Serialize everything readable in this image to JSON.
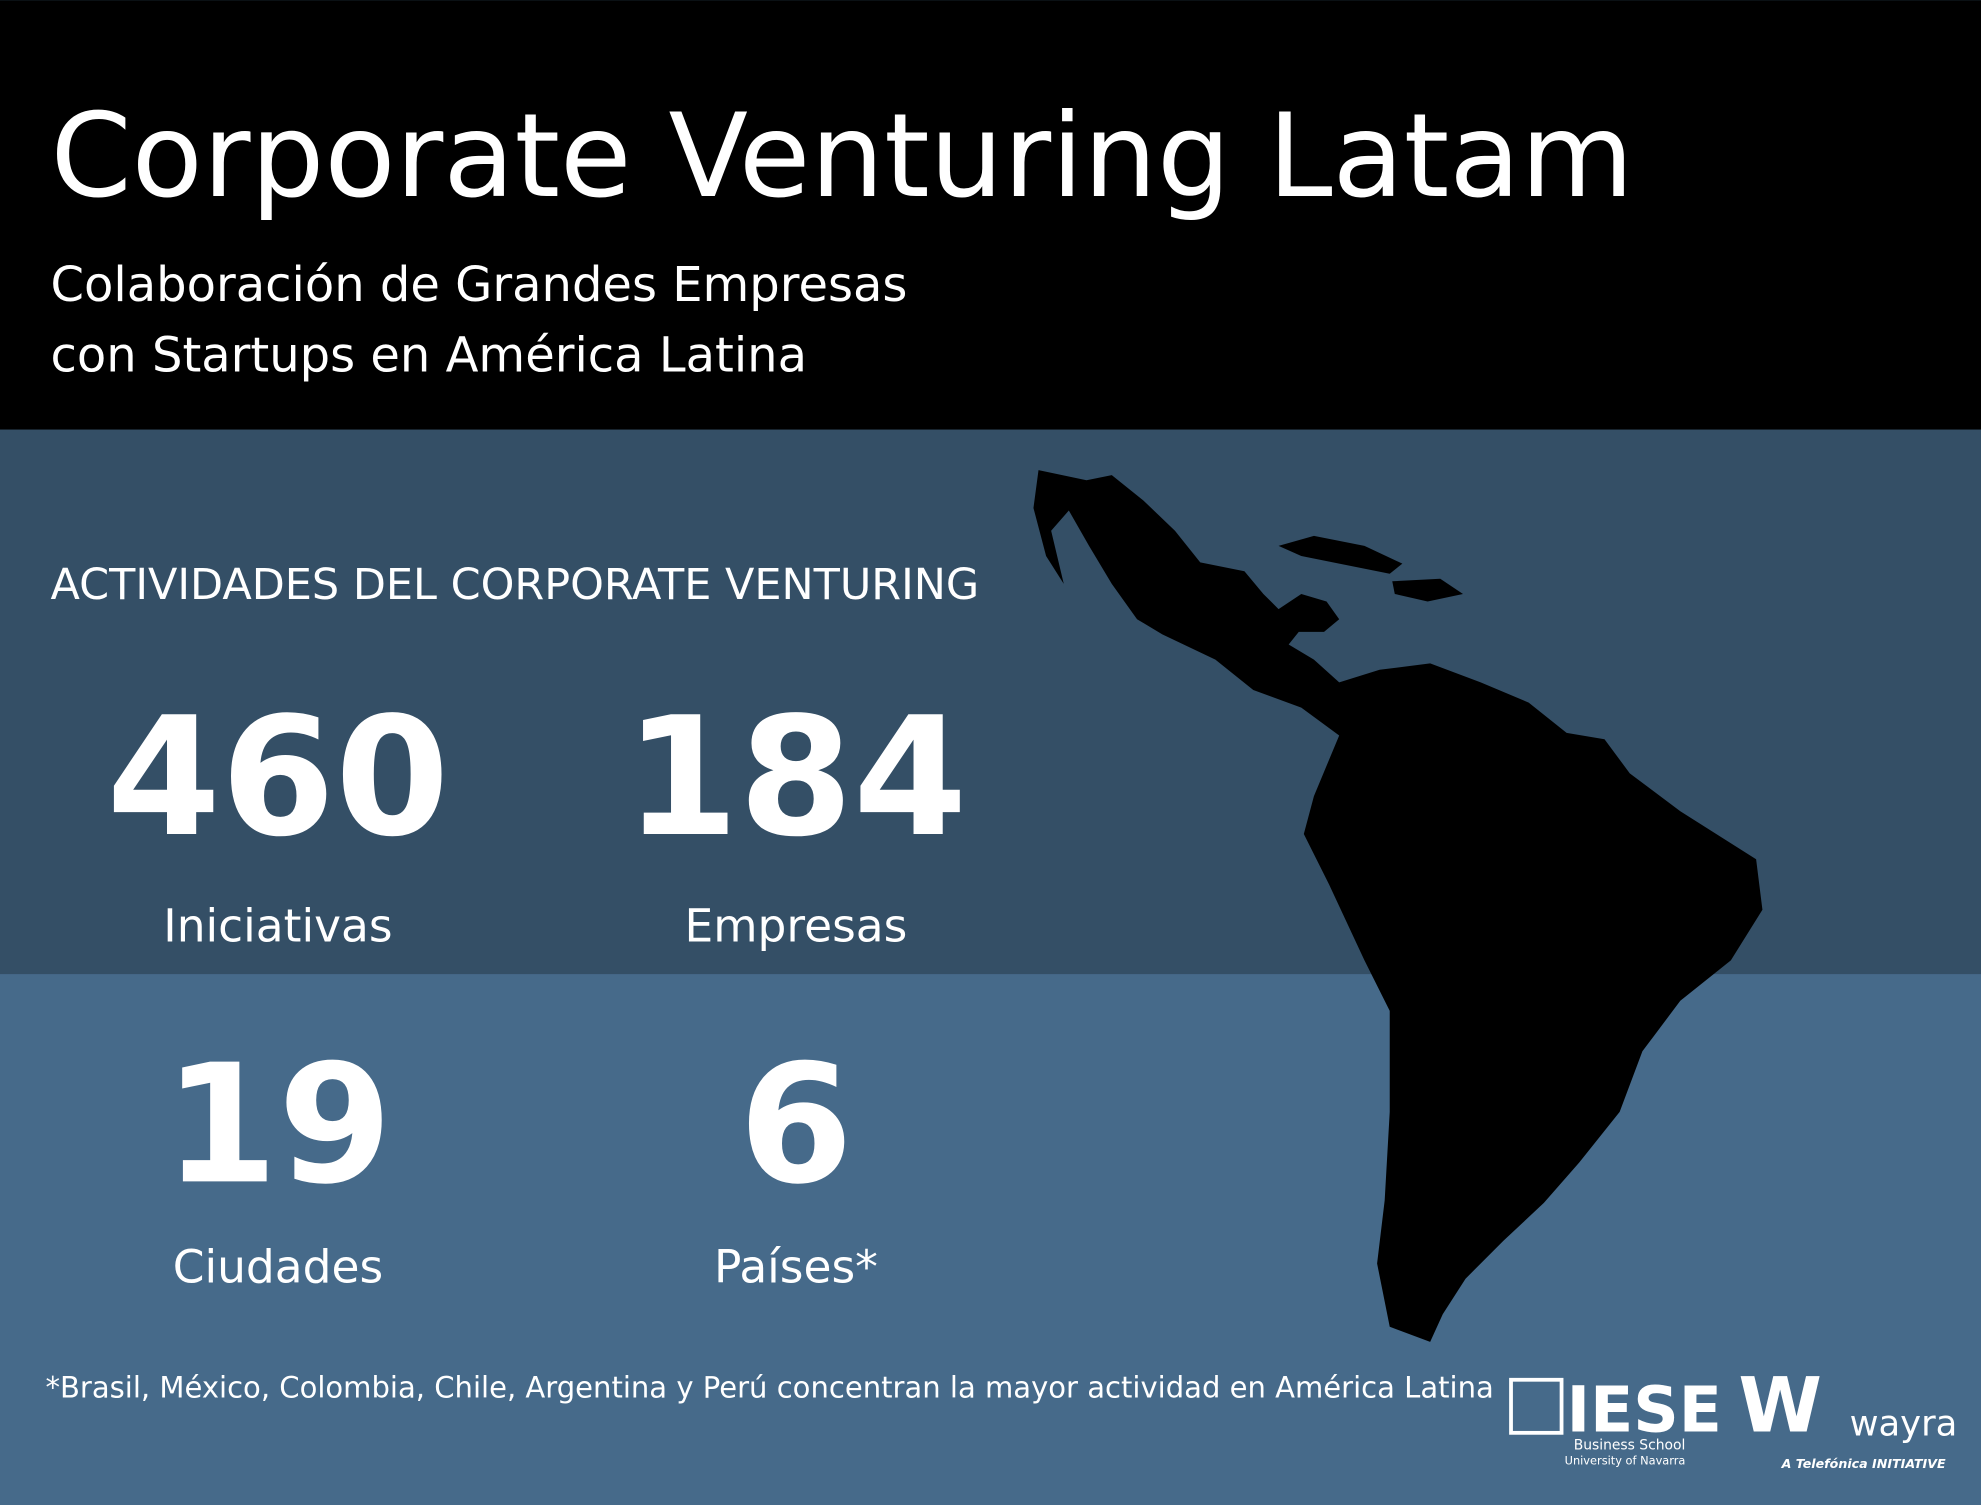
{
  "header": {
    "title": "Corporate Venturing Latam",
    "subtitle": [
      "Colaboración de Grandes Empresas",
      "con Startups en América Latina"
    ]
  },
  "section": {
    "heading": "ACTIVIDADES DEL CORPORATE VENTURING"
  },
  "stats": [
    {
      "value": 460,
      "label": "Iniciativas"
    },
    {
      "value": 184,
      "label": "Empresas"
    },
    {
      "value": 19,
      "label": "Ciudades"
    },
    {
      "value": 6,
      "label": "Países*"
    }
  ],
  "footnote": "*Brasil, México, Colombia, Chile, Argentina y Perú concentran la mayor actividad en América Latina",
  "logos": {
    "iese": {
      "name": "IESE",
      "line1": "Business School",
      "line2": "University of Navarra"
    },
    "wayra": {
      "mark": "W",
      "name": "wayra",
      "tagline": "A Telefónica INITIATIVE"
    }
  }
}
